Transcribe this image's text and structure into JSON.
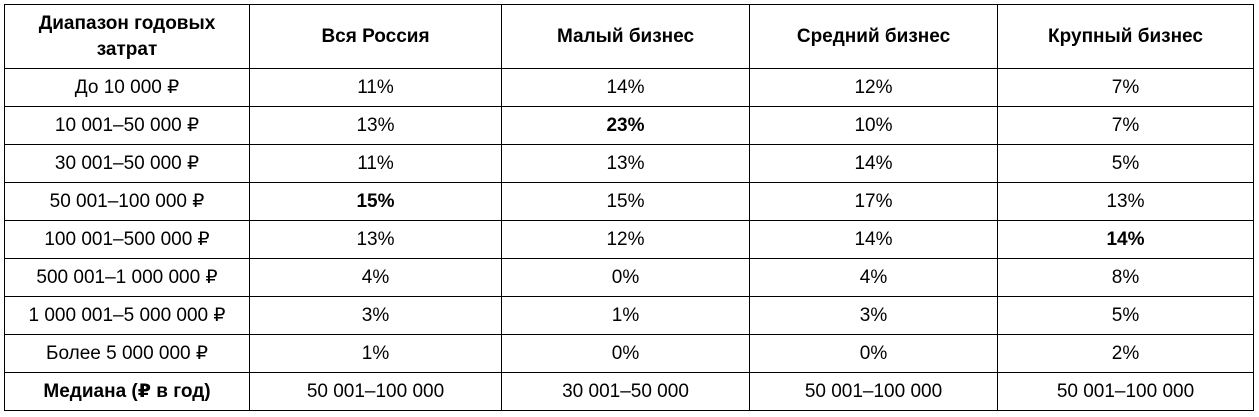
{
  "headers": [
    "Диапазон годовых затрат",
    "Вся Россия",
    "Малый бизнес",
    "Средний бизнес",
    "Крупный бизнес"
  ],
  "rows": [
    {
      "label": "До 10 000 ₽",
      "values": [
        "11%",
        "14%",
        "12%",
        "7%"
      ],
      "bold": [
        false,
        false,
        false,
        false
      ]
    },
    {
      "label": "10 001–50 000 ₽",
      "values": [
        "13%",
        "23%",
        "10%",
        "7%"
      ],
      "bold": [
        false,
        true,
        false,
        false
      ]
    },
    {
      "label": "30 001–50 000 ₽",
      "values": [
        "11%",
        "13%",
        "14%",
        "5%"
      ],
      "bold": [
        false,
        false,
        false,
        false
      ]
    },
    {
      "label": "50 001–100 000 ₽",
      "values": [
        "15%",
        "15%",
        "17%",
        "13%"
      ],
      "bold": [
        true,
        false,
        false,
        false
      ]
    },
    {
      "label": "100 001–500 000 ₽",
      "values": [
        "13%",
        "12%",
        "14%",
        "14%"
      ],
      "bold": [
        false,
        false,
        false,
        true
      ]
    },
    {
      "label": "500 001–1 000 000 ₽",
      "values": [
        "4%",
        "0%",
        "4%",
        "8%"
      ],
      "bold": [
        false,
        false,
        false,
        false
      ]
    },
    {
      "label": "1 000 001–5 000 000 ₽",
      "values": [
        "3%",
        "1%",
        "3%",
        "5%"
      ],
      "bold": [
        false,
        false,
        false,
        false
      ]
    },
    {
      "label": "Более 5 000 000 ₽",
      "values": [
        "1%",
        "0%",
        "0%",
        "2%"
      ],
      "bold": [
        false,
        false,
        false,
        false
      ]
    }
  ],
  "median": {
    "label": "Медиана (₽ в год)",
    "values": [
      "50 001–100 000",
      "30 001–50 000",
      "50 001–100 000",
      "50 001–100 000"
    ]
  }
}
